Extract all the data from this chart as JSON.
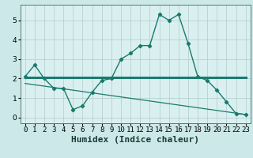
{
  "xlabel": "Humidex (Indice chaleur)",
  "x_ticks": [
    0,
    1,
    2,
    3,
    4,
    5,
    6,
    7,
    8,
    9,
    10,
    11,
    12,
    13,
    14,
    15,
    16,
    17,
    18,
    19,
    20,
    21,
    22,
    23
  ],
  "ylim": [
    -0.3,
    5.8
  ],
  "xlim": [
    -0.5,
    23.5
  ],
  "line1_x": [
    0,
    1,
    2,
    3,
    4,
    5,
    6,
    7,
    8,
    9,
    10,
    11,
    12,
    13,
    14,
    15,
    16,
    17,
    18,
    19,
    20,
    21,
    22,
    23
  ],
  "line1_y": [
    2.1,
    2.7,
    2.0,
    1.5,
    1.5,
    0.4,
    0.6,
    1.3,
    1.9,
    2.0,
    3.0,
    3.3,
    3.7,
    3.7,
    5.3,
    5.0,
    5.3,
    3.8,
    2.1,
    1.9,
    1.4,
    0.8,
    0.2,
    0.15
  ],
  "line2_x": [
    0,
    23
  ],
  "line2_y": [
    2.05,
    2.05
  ],
  "line3_x": [
    0,
    23
  ],
  "line3_y": [
    1.75,
    0.15
  ],
  "line_color": "#1a7a6e",
  "bg_color": "#cce8e8",
  "plot_bg_color": "#daf0f0",
  "grid_color": "#b0cccc",
  "tick_fontsize": 6.5,
  "label_fontsize": 8
}
